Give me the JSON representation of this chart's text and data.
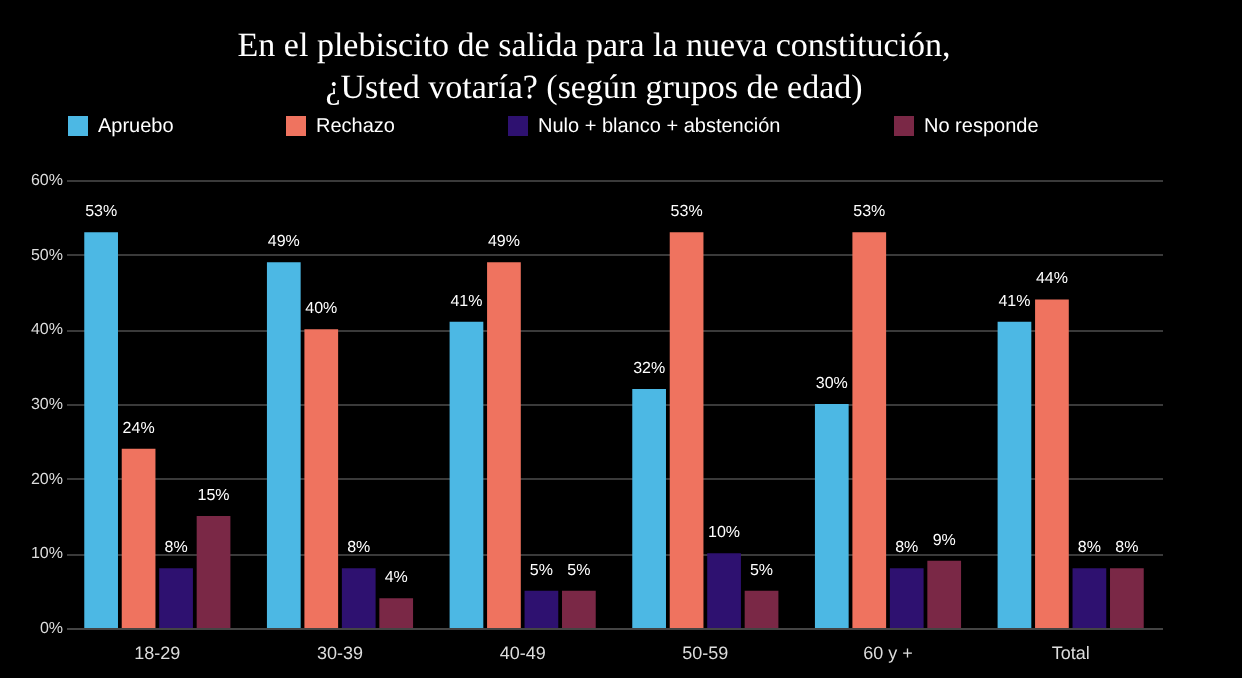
{
  "chart_data": {
    "type": "bar",
    "title": "En el plebiscito de salida para la nueva constitución,\n¿Usted votaría? (según grupos de edad)",
    "categories": [
      "18-29",
      "30-39",
      "40-49",
      "50-59",
      "60 y +",
      "Total"
    ],
    "series": [
      {
        "name": "Apruebo",
        "color": "#4cb8e4",
        "values": [
          53,
          49,
          41,
          32,
          30,
          41
        ],
        "value_labels": [
          "53%",
          "49%",
          "41%",
          "32%",
          "30%",
          "41%"
        ]
      },
      {
        "name": "Rechazo",
        "color": "#ef735f",
        "values": [
          24,
          40,
          49,
          53,
          53,
          44
        ],
        "value_labels": [
          "24%",
          "40%",
          "49%",
          "53%",
          "53%",
          "44%"
        ]
      },
      {
        "name": "Nulo + blanco + abstención",
        "color": "#2e1170",
        "values": [
          8,
          8,
          5,
          10,
          8,
          8
        ],
        "value_labels": [
          "8%",
          "8%",
          "5%",
          "10%",
          "8%",
          "8%"
        ]
      },
      {
        "name": "No responde",
        "color": "#7a2846",
        "values": [
          15,
          4,
          5,
          5,
          9,
          8
        ],
        "value_labels": [
          "15%",
          "4%",
          "5%",
          "5%",
          "9%",
          "8%"
        ]
      }
    ],
    "ylim": [
      0,
      60
    ],
    "yticks": [
      {
        "value": 0,
        "label": "0%"
      },
      {
        "value": 10,
        "label": "10%"
      },
      {
        "value": 20,
        "label": "20%"
      },
      {
        "value": 30,
        "label": "30%"
      },
      {
        "value": 40,
        "label": "40%"
      },
      {
        "value": 50,
        "label": "50%"
      },
      {
        "value": 60,
        "label": "60%"
      }
    ],
    "grid": "y",
    "legend": "top"
  }
}
